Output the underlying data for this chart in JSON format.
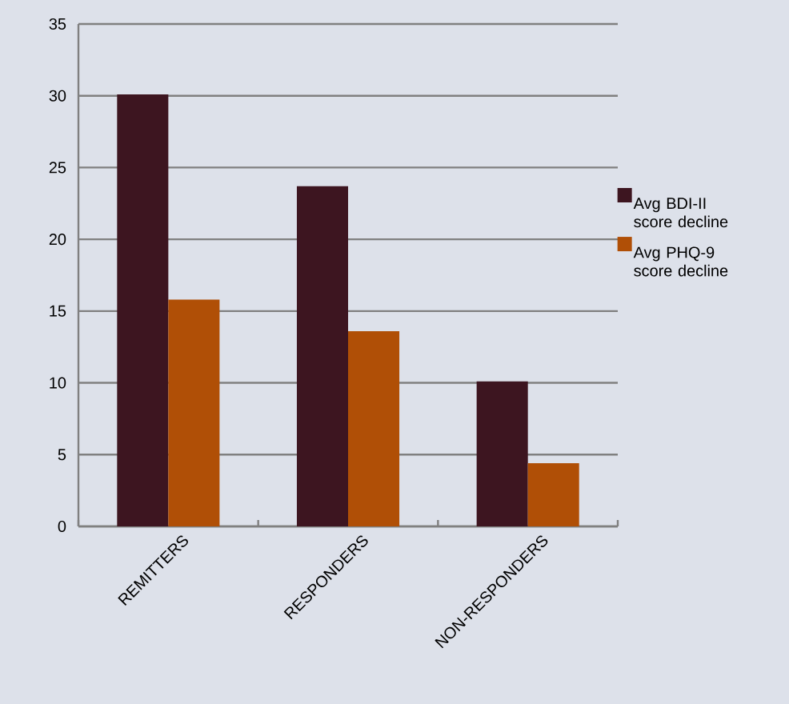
{
  "chart_data": {
    "type": "bar",
    "categories": [
      "REMITTERS",
      "RESPONDERS",
      "NON-RESPONDERS"
    ],
    "series": [
      {
        "name": "Avg BDI-II score decline",
        "color": "#3d1520",
        "values": [
          30.1,
          23.7,
          10.1
        ]
      },
      {
        "name": "Avg PHQ-9 score decline",
        "color": "#b04f06",
        "values": [
          15.8,
          13.6,
          4.4
        ]
      }
    ],
    "ylim": [
      0,
      35
    ],
    "yticks": [
      0,
      5,
      10,
      15,
      20,
      25,
      30,
      35
    ],
    "grid": "y",
    "legend": "right"
  }
}
